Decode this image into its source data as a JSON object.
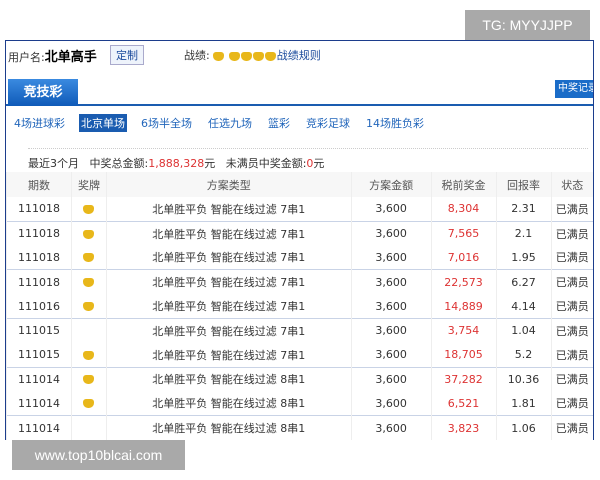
{
  "watermarks": {
    "top": "TG: MYYJJPP",
    "bottom": "www.top10blcai.com"
  },
  "user": {
    "label": "用户名:",
    "name": "北单高手",
    "custom_button": "定制",
    "record_label": "战绩:",
    "record_rule": "战绩规则"
  },
  "tabs": {
    "main": "竞技彩",
    "right": "中奖记录"
  },
  "subtabs": [
    "4场进球彩",
    "北京单场",
    "6场半全场",
    "任选九场",
    "篮彩",
    "竞彩足球",
    "14场胜负彩"
  ],
  "active_subtab": "北京单场",
  "summary": {
    "period": "最近3个月",
    "total_label": "中奖总金额:",
    "total_value": "1,888,328",
    "total_unit": "元",
    "unfilled_label": "未满员中奖金额:",
    "unfilled_value": "0",
    "unfilled_unit": "元"
  },
  "table": {
    "headers": [
      "期数",
      "奖牌",
      "方案类型",
      "方案金额",
      "税前奖金",
      "回报率",
      "状态"
    ],
    "rows": [
      {
        "issue": "111018",
        "medal": true,
        "type": "北单胜平负 智能在线过滤 7串1",
        "amount": "3,600",
        "prize": "8,304",
        "rate": "2.31",
        "status": "已满员"
      },
      {
        "issue": "111018",
        "medal": true,
        "type": "北单胜平负 智能在线过滤 7串1",
        "amount": "3,600",
        "prize": "7,565",
        "rate": "2.1",
        "status": "已满员"
      },
      {
        "issue": "111018",
        "medal": true,
        "type": "北单胜平负 智能在线过滤 7串1",
        "amount": "3,600",
        "prize": "7,016",
        "rate": "1.95",
        "status": "已满员"
      },
      {
        "issue": "111018",
        "medal": true,
        "type": "北单胜平负 智能在线过滤 7串1",
        "amount": "3,600",
        "prize": "22,573",
        "rate": "6.27",
        "status": "已满员"
      },
      {
        "issue": "111016",
        "medal": true,
        "type": "北单胜平负 智能在线过滤 7串1",
        "amount": "3,600",
        "prize": "14,889",
        "rate": "4.14",
        "status": "已满员"
      },
      {
        "issue": "111015",
        "medal": false,
        "type": "北单胜平负 智能在线过滤 7串1",
        "amount": "3,600",
        "prize": "3,754",
        "rate": "1.04",
        "status": "已满员"
      },
      {
        "issue": "111015",
        "medal": true,
        "type": "北单胜平负 智能在线过滤 7串1",
        "amount": "3,600",
        "prize": "18,705",
        "rate": "5.2",
        "status": "已满员"
      },
      {
        "issue": "111014",
        "medal": true,
        "type": "北单胜平负 智能在线过滤 8串1",
        "amount": "3,600",
        "prize": "37,282",
        "rate": "10.36",
        "status": "已满员"
      },
      {
        "issue": "111014",
        "medal": true,
        "type": "北单胜平负 智能在线过滤 8串1",
        "amount": "3,600",
        "prize": "6,521",
        "rate": "1.81",
        "status": "已满员"
      },
      {
        "issue": "111014",
        "medal": false,
        "type": "北单胜平负 智能在线过滤 8串1",
        "amount": "3,600",
        "prize": "3,823",
        "rate": "1.06",
        "status": "已满员"
      }
    ]
  },
  "colors": {
    "accent": "#1a5cb0",
    "prize": "#dd3333",
    "medal": "#e8b71a"
  }
}
